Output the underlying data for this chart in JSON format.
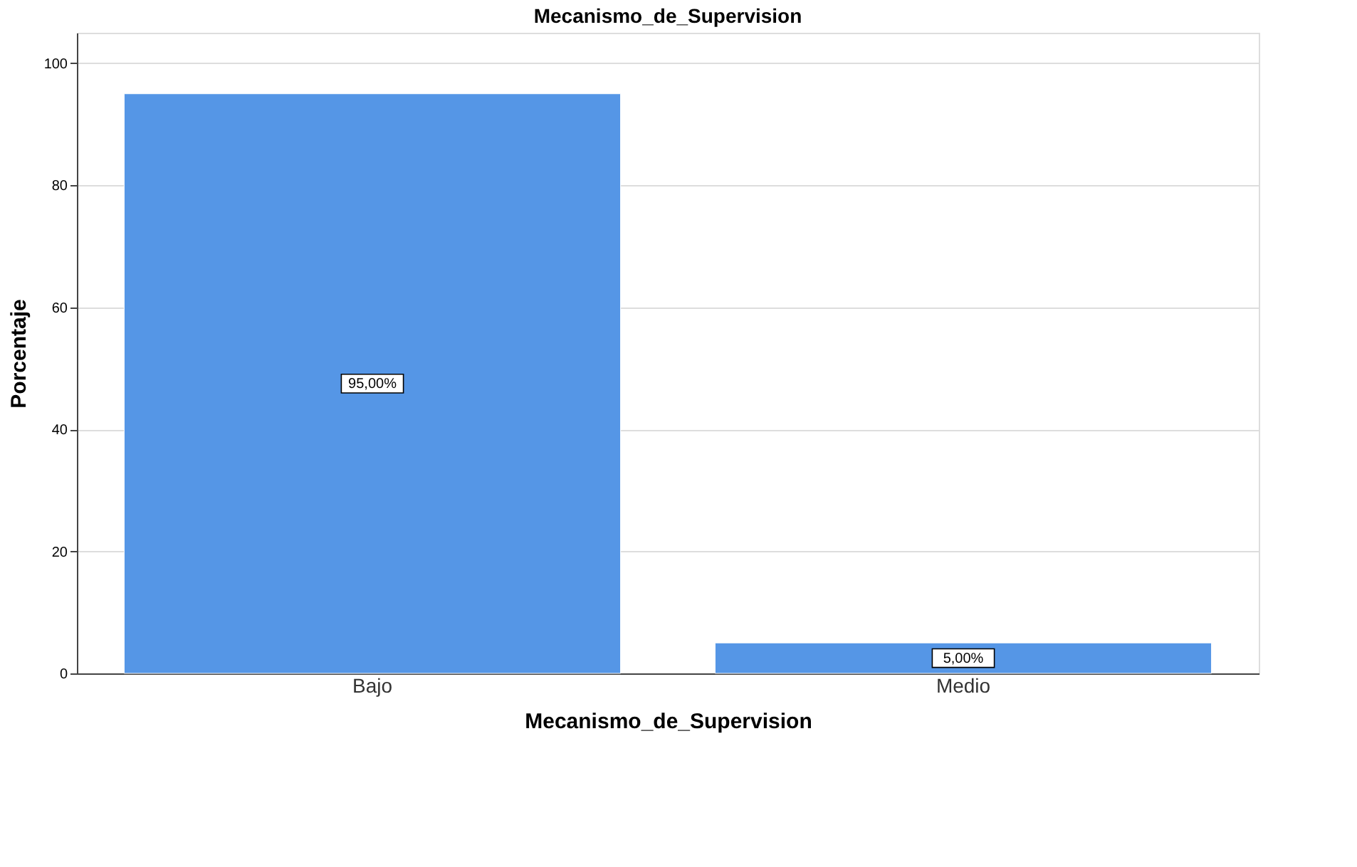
{
  "chart_data": {
    "type": "bar",
    "title": "Mecanismo_de_Supervision",
    "xlabel": "Mecanismo_de_Supervision",
    "ylabel": "Porcentaje",
    "categories": [
      "Bajo",
      "Medio"
    ],
    "values": [
      95,
      5
    ],
    "color": "#5596e6",
    "value_labels": [
      "95,00%",
      "5,00%"
    ],
    "ylim": [
      0,
      105
    ],
    "yticks": [
      0,
      20,
      40,
      60,
      80,
      100
    ],
    "grid": "y"
  }
}
